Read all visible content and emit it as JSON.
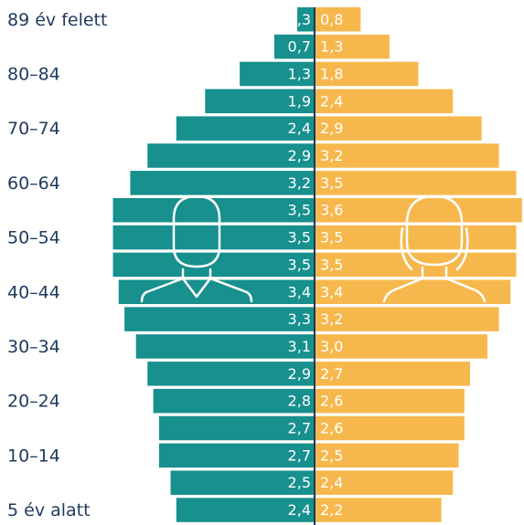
{
  "chart_data": {
    "type": "pyramid",
    "categories": [
      "89 év felett",
      null,
      "80–84",
      null,
      "70–74",
      null,
      "60–64",
      null,
      "50–54",
      null,
      "40–44",
      null,
      "30–34",
      null,
      "20–24",
      null,
      "10–14",
      null,
      "5 év alatt"
    ],
    "series": [
      {
        "color": "#17908e",
        "side": "left",
        "values": [
          0.3,
          0.7,
          1.3,
          1.9,
          2.4,
          2.9,
          3.2,
          3.5,
          3.5,
          3.5,
          3.4,
          3.3,
          3.1,
          2.9,
          2.8,
          2.7,
          2.7,
          2.5,
          2.4
        ],
        "value_labels": [
          "0,3",
          "0,7",
          "1,3",
          "1,9",
          "2,4",
          "2,9",
          "3,2",
          "3,5",
          "3,5",
          "3,5",
          "3,4",
          "3,3",
          "3,1",
          "2,9",
          "2,8",
          "2,7",
          "2,7",
          "2,5",
          "2,4"
        ]
      },
      {
        "color": "#f6b84d",
        "side": "right",
        "values": [
          0.8,
          1.3,
          1.8,
          2.4,
          2.9,
          3.2,
          3.5,
          3.6,
          3.5,
          3.5,
          3.4,
          3.2,
          3.0,
          2.7,
          2.6,
          2.6,
          2.5,
          2.4,
          2.2
        ],
        "value_labels": [
          "0,8",
          "1,3",
          "1,8",
          "2,4",
          "2,9",
          "3,2",
          "3,5",
          "3,6",
          "3,5",
          "3,5",
          "3,4",
          "3,2",
          "3,0",
          "2,7",
          "2,6",
          "2,6",
          "2,5",
          "2,4",
          "2,2"
        ]
      }
    ]
  }
}
